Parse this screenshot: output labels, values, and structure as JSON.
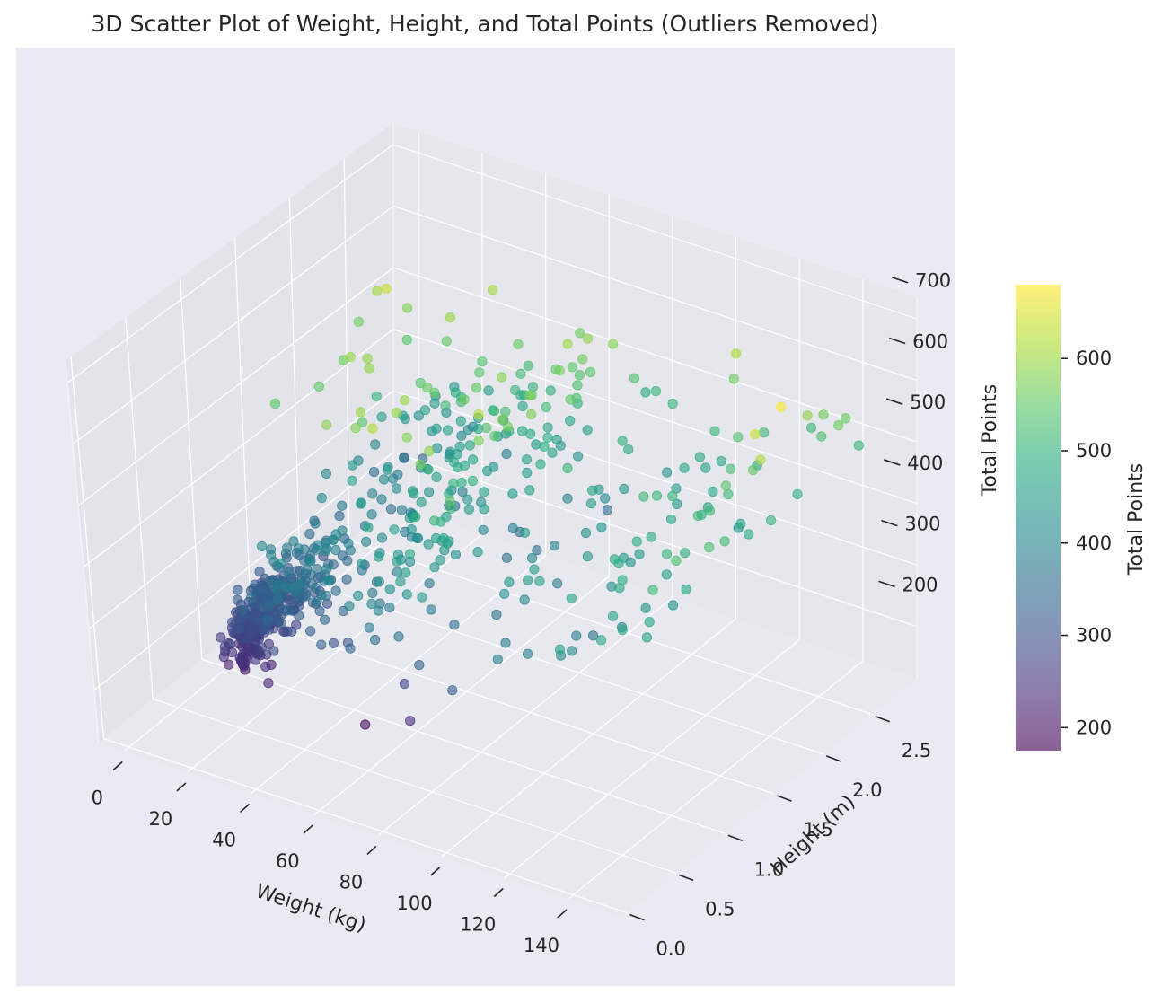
{
  "chart_data": {
    "type": "scatter",
    "projection": "3d",
    "title": "3D Scatter Plot of Weight, Height, and Total Points (Outliers Removed)",
    "xlabel": "Weight (kg)",
    "ylabel": "Height (m)",
    "zlabel": "Total Points",
    "xlim": [
      -8,
      157
    ],
    "ylim": [
      -0.05,
      2.95
    ],
    "zlim": [
      115,
      735
    ],
    "xticks": [
      "0",
      "20",
      "40",
      "60",
      "80",
      "100",
      "120",
      "140"
    ],
    "yticks": [
      "0.0",
      "0.5",
      "1.0",
      "1.5",
      "2.0",
      "2.5"
    ],
    "zticks": [
      "200",
      "300",
      "400",
      "500",
      "600",
      "700"
    ],
    "colormap": "viridis",
    "colorbar": {
      "label": "Total Points",
      "range": [
        175,
        680
      ],
      "ticks": [
        "200",
        "300",
        "400",
        "500",
        "600"
      ]
    },
    "points_note": "approx. 700 individual observations, clustered at low weight / low height with sparser high-weight points",
    "notable_points": [
      {
        "x": 150,
        "y": 1.9,
        "z": 680
      },
      {
        "x": 145,
        "y": 1.8,
        "z": 640
      },
      {
        "x": 150,
        "y": 1.7,
        "z": 620
      },
      {
        "x": 22,
        "y": 2.0,
        "z": 640
      },
      {
        "x": 60,
        "y": 0.5,
        "z": 190
      },
      {
        "x": 78,
        "y": 0.4,
        "z": 240
      }
    ]
  }
}
